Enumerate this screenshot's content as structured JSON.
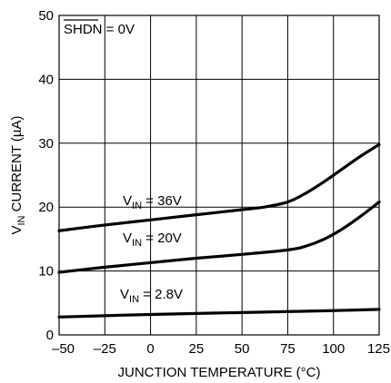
{
  "chart_data": {
    "type": "line",
    "title": "",
    "xlabel": "JUNCTION TEMPERATURE (°C)",
    "ylabel_parts": {
      "main": "V",
      "sub": "IN",
      "rest": " CURRENT (µA)"
    },
    "xlim": [
      -50,
      125
    ],
    "ylim": [
      0,
      50
    ],
    "xticks": [
      -50,
      -25,
      0,
      25,
      50,
      75,
      100,
      125
    ],
    "yticks": [
      0,
      10,
      20,
      30,
      40,
      50
    ],
    "xtick_labels": [
      "–50",
      "–25",
      "0",
      "25",
      "50",
      "75",
      "100",
      "125"
    ],
    "ytick_labels": [
      "0",
      "10",
      "20",
      "30",
      "40",
      "50"
    ],
    "grid": true,
    "annotation": {
      "overline": "SHDN",
      "rest": " = 0V"
    },
    "series": [
      {
        "label": {
          "main": "V",
          "sub": "IN",
          "rest": " = 36V"
        },
        "x": [
          -50,
          -25,
          0,
          25,
          50,
          62,
          75,
          85,
          95,
          105,
          115,
          125
        ],
        "y": [
          16.3,
          17.2,
          18.0,
          18.8,
          19.6,
          20.0,
          20.8,
          22.2,
          24.0,
          26.0,
          28.0,
          29.8
        ]
      },
      {
        "label": {
          "main": "V",
          "sub": "IN",
          "rest": " = 20V"
        },
        "x": [
          -50,
          -25,
          0,
          25,
          50,
          75,
          85,
          95,
          105,
          115,
          125
        ],
        "y": [
          9.8,
          10.6,
          11.3,
          12.0,
          12.6,
          13.3,
          13.9,
          15.0,
          16.6,
          18.6,
          20.8
        ]
      },
      {
        "label": {
          "main": "V",
          "sub": "IN",
          "rest": " = 2.8V"
        },
        "x": [
          -50,
          0,
          50,
          100,
          125
        ],
        "y": [
          2.8,
          3.2,
          3.5,
          3.8,
          4.0
        ]
      }
    ]
  }
}
